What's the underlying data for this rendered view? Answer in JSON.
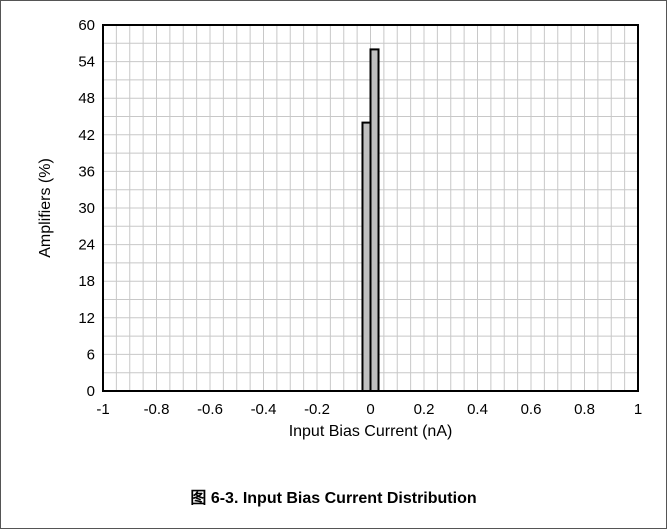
{
  "caption": "图 6-3. Input Bias Current Distribution",
  "chart_data": {
    "type": "bar",
    "xlabel": "Input Bias Current (nA)",
    "ylabel": "Amplifiers (%)",
    "xlim": [
      -1,
      1
    ],
    "ylim": [
      0,
      60
    ],
    "xticks": [
      -1,
      -0.8,
      -0.6,
      -0.4,
      -0.2,
      0,
      0.2,
      0.4,
      0.6,
      0.8,
      1
    ],
    "xtick_labels": [
      "-1",
      "-0.8",
      "-0.6",
      "-0.4",
      "-0.2",
      "0",
      "0.2",
      "0.4",
      "0.6",
      "0.8",
      "1"
    ],
    "yticks": [
      0,
      6,
      12,
      18,
      24,
      30,
      36,
      42,
      48,
      54,
      60
    ],
    "ytick_labels": [
      "0",
      "6",
      "12",
      "18",
      "24",
      "30",
      "36",
      "42",
      "48",
      "54",
      "60"
    ],
    "x_minor_step": 0.05,
    "y_minor_step": 3,
    "bin_width": 0.03,
    "bins": [
      {
        "x": -0.015,
        "value": 44
      },
      {
        "x": 0.015,
        "value": 56
      }
    ],
    "grid": true,
    "bar_color": "#bfbfbf",
    "bar_edge_color": "#000000"
  }
}
